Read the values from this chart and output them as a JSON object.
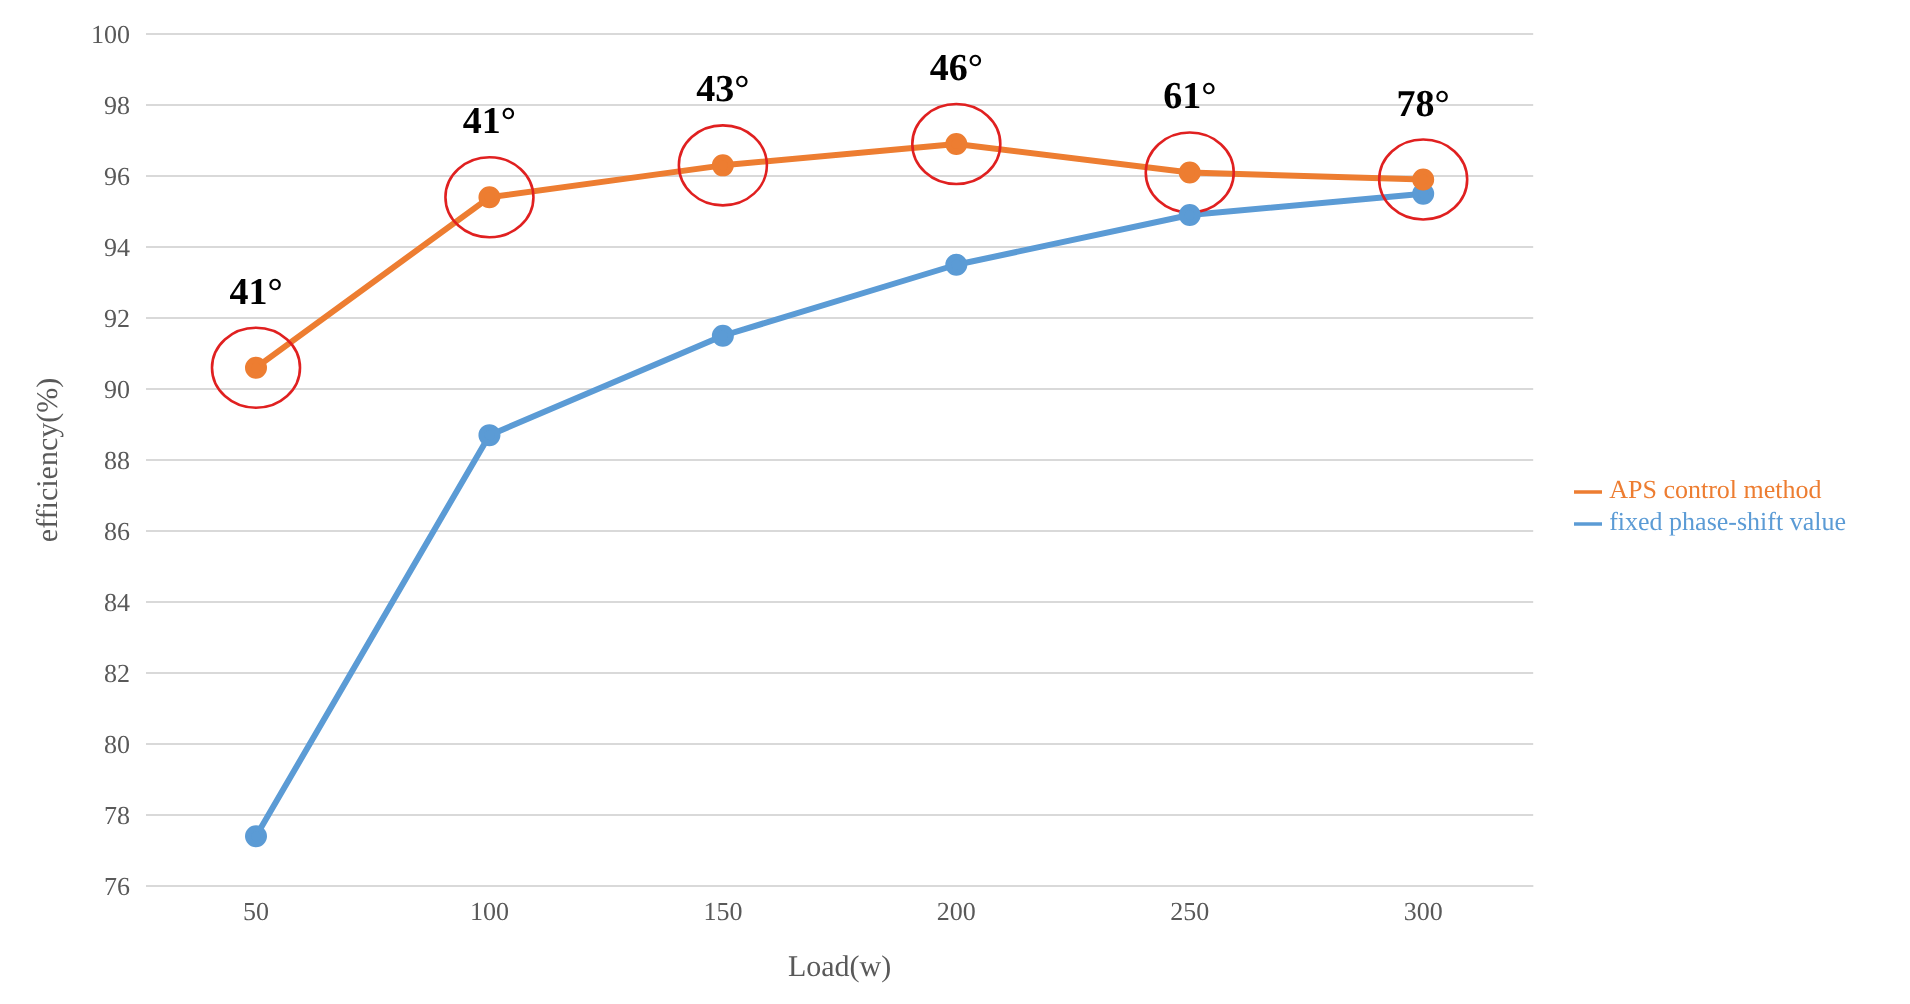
{
  "chart_data": {
    "type": "line",
    "xlabel": "Load(w)",
    "ylabel": "efficiency(%)",
    "categories": [
      "50",
      "100",
      "150",
      "200",
      "250",
      "300"
    ],
    "series": [
      {
        "name": "fixed phase-shift value",
        "color": "#5b9bd5",
        "values": [
          77.4,
          88.7,
          91.5,
          93.5,
          94.9,
          95.5
        ]
      },
      {
        "name": "APS control method",
        "color": "#ed7d31",
        "values": [
          90.6,
          95.4,
          96.3,
          96.9,
          96.1,
          95.9
        ]
      }
    ],
    "ylim": [
      76,
      100
    ],
    "yticks": [
      76,
      78,
      80,
      82,
      84,
      86,
      88,
      90,
      92,
      94,
      96,
      98,
      100
    ],
    "grid": "y",
    "legend": "right",
    "marker": "circle",
    "line_style": "solid",
    "annotations": [
      {
        "text": "41°",
        "x": "50",
        "y": 90.6
      },
      {
        "text": "41°",
        "x": "100",
        "y": 95.4
      },
      {
        "text": "43°",
        "x": "150",
        "y": 96.3
      },
      {
        "text": "46°",
        "x": "200",
        "y": 96.9
      },
      {
        "text": "61°",
        "x": "250",
        "y": 96.1
      },
      {
        "text": "78°",
        "x": "300",
        "y": 95.9
      }
    ]
  }
}
